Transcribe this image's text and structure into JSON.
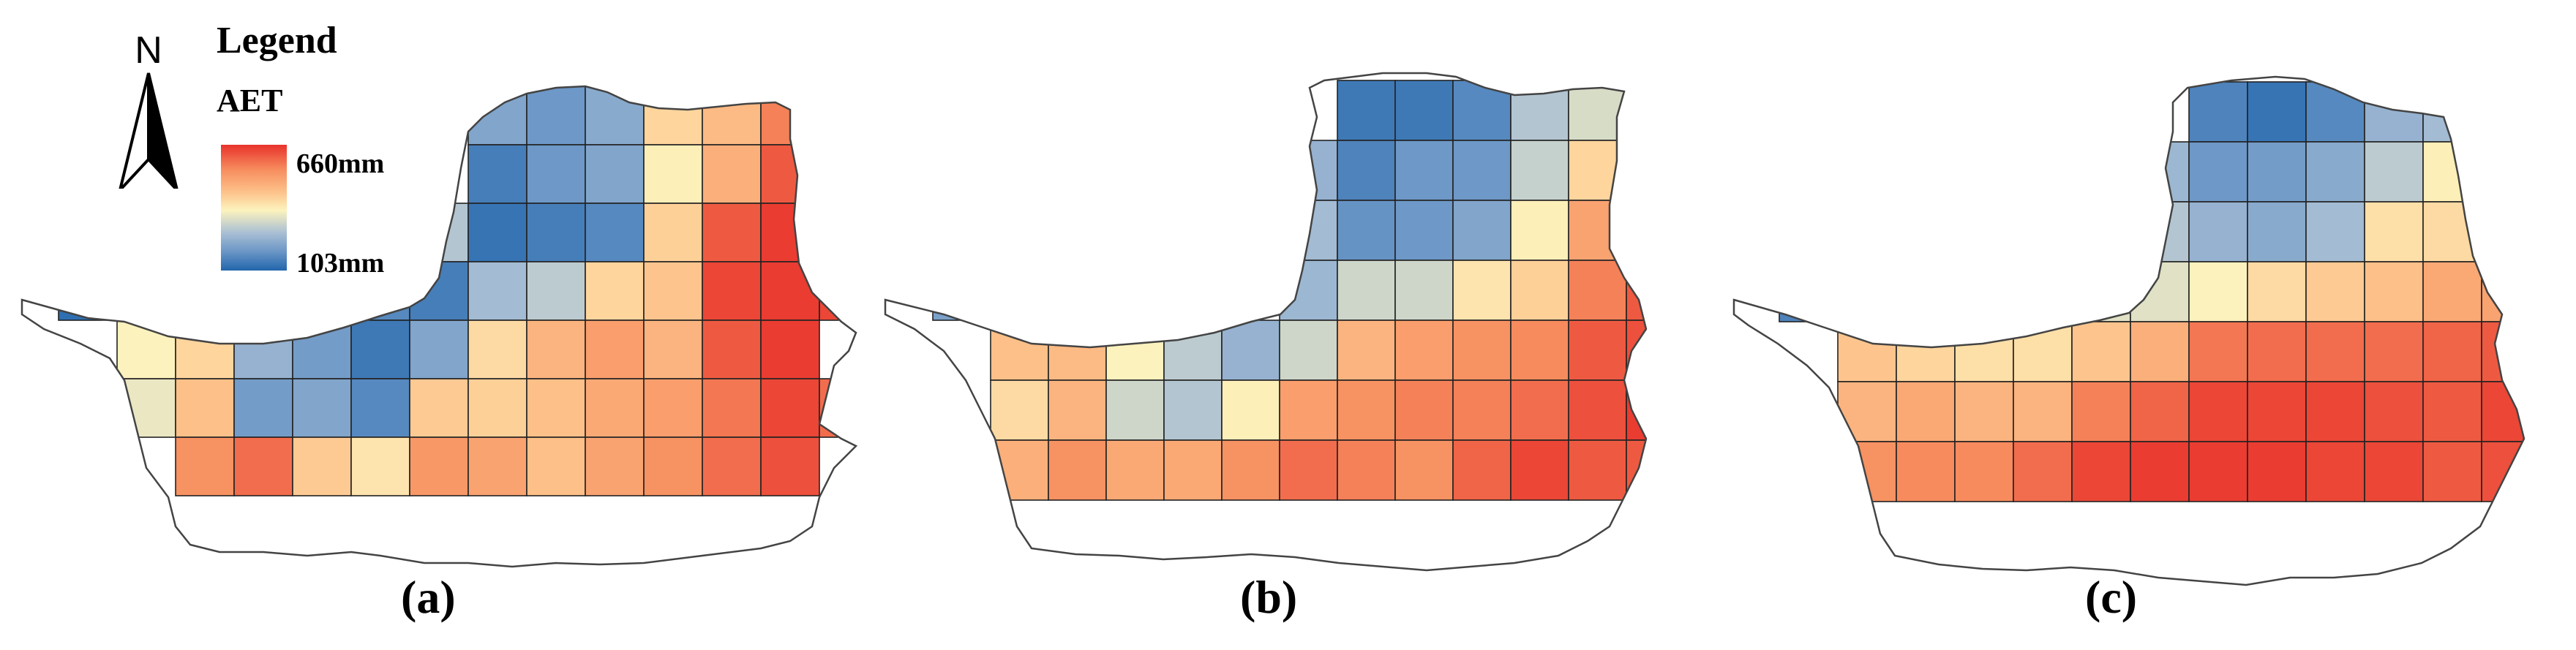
{
  "legend": {
    "title": "Legend",
    "variable": "AET",
    "max_label": "660mm",
    "min_label": "103mm",
    "max_value": 660,
    "min_value": 103,
    "colormap": [
      "#2166ac",
      "#6a96c6",
      "#a9bfd4",
      "#fdf3bd",
      "#fdc38b",
      "#f78e5f",
      "#e8322b"
    ],
    "units": "mm"
  },
  "north_arrow": {
    "label": "N",
    "icon": "north-arrow-icon"
  },
  "panels": [
    {
      "label": "(a)",
      "grid": [
        [
          null,
          null,
          null,
          null,
          null,
          null,
          null,
          230,
          200,
          240,
          440,
          490,
          580,
          null,
          null
        ],
        [
          null,
          null,
          null,
          null,
          null,
          null,
          null,
          150,
          200,
          230,
          390,
          510,
          620,
          600,
          null
        ],
        [
          null,
          null,
          null,
          null,
          null,
          null,
          300,
          130,
          150,
          170,
          450,
          620,
          650,
          null,
          null
        ],
        [
          120,
          200,
          330,
          400,
          null,
          170,
          150,
          280,
          310,
          440,
          470,
          640,
          650,
          640,
          null
        ],
        [
          null,
          380,
          440,
          260,
          210,
          140,
          230,
          430,
          500,
          540,
          500,
          620,
          650,
          null,
          null
        ],
        [
          null,
          360,
          480,
          210,
          230,
          170,
          460,
          450,
          480,
          520,
          540,
          590,
          640,
          600,
          null
        ],
        [
          null,
          null,
          560,
          600,
          460,
          410,
          550,
          530,
          480,
          530,
          560,
          600,
          630,
          null,
          null
        ]
      ]
    },
    {
      "label": "(b)",
      "grid": [
        [
          null,
          null,
          null,
          null,
          null,
          null,
          null,
          140,
          140,
          170,
          300,
          340,
          430,
          null,
          null
        ],
        [
          null,
          null,
          null,
          null,
          null,
          null,
          260,
          160,
          200,
          200,
          320,
          440,
          null,
          null,
          null
        ],
        [
          null,
          null,
          null,
          null,
          null,
          null,
          280,
          190,
          200,
          230,
          390,
          530,
          null,
          null,
          null
        ],
        [
          220,
          380,
          420,
          300,
          260,
          null,
          270,
          330,
          330,
          410,
          450,
          580,
          620,
          null,
          null
        ],
        [
          null,
          480,
          490,
          380,
          310,
          260,
          330,
          500,
          540,
          560,
          570,
          620,
          630,
          null,
          null
        ],
        [
          null,
          430,
          500,
          330,
          300,
          390,
          540,
          560,
          580,
          580,
          600,
          630,
          650,
          null,
          null
        ],
        [
          null,
          510,
          560,
          520,
          520,
          560,
          600,
          580,
          560,
          610,
          640,
          620,
          620,
          null,
          null
        ]
      ]
    },
    {
      "label": "(c)",
      "grid": [
        [
          null,
          null,
          null,
          null,
          null,
          null,
          null,
          160,
          130,
          170,
          260,
          280,
          340,
          null,
          null
        ],
        [
          null,
          null,
          null,
          null,
          null,
          null,
          270,
          200,
          210,
          240,
          310,
          390,
          420,
          null,
          null
        ],
        [
          null,
          null,
          null,
          null,
          null,
          null,
          300,
          260,
          240,
          280,
          420,
          430,
          450,
          null,
          null
        ],
        [
          160,
          260,
          300,
          330,
          330,
          350,
          350,
          380,
          430,
          460,
          480,
          520,
          530,
          null,
          null
        ],
        [
          null,
          470,
          440,
          420,
          420,
          470,
          510,
          590,
          600,
          600,
          600,
          610,
          620,
          null,
          null
        ],
        [
          null,
          500,
          520,
          500,
          500,
          580,
          610,
          640,
          640,
          640,
          630,
          620,
          640,
          null,
          null
        ],
        [
          null,
          560,
          570,
          570,
          600,
          640,
          650,
          650,
          650,
          640,
          640,
          620,
          630,
          null,
          null
        ]
      ]
    }
  ]
}
